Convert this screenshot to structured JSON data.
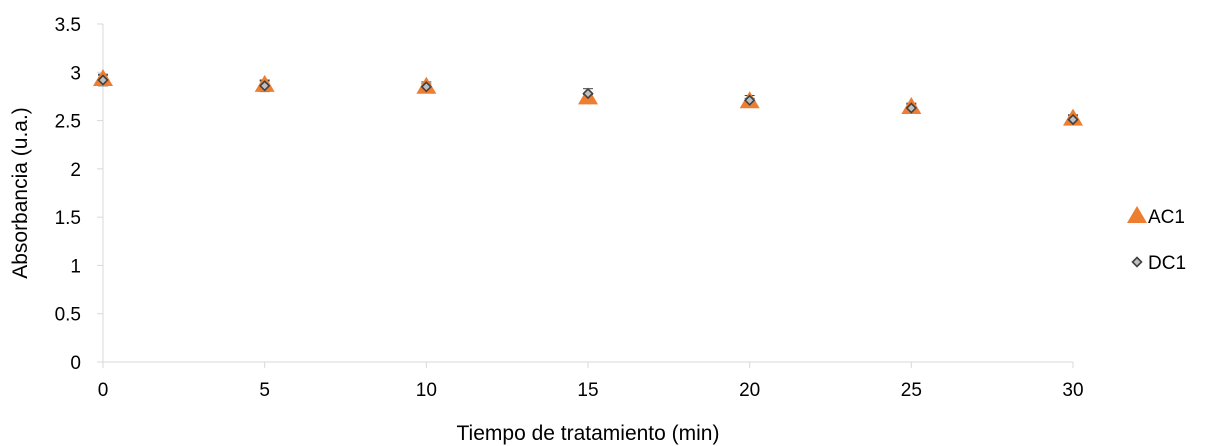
{
  "chart_data": {
    "type": "scatter",
    "title": "",
    "xlabel": "Tiempo de tratamiento (min)",
    "ylabel": "Absorbancia (u.a.)",
    "xlim": [
      0,
      30
    ],
    "ylim": [
      0,
      3.5
    ],
    "xticks": [
      "0",
      "5",
      "10",
      "15",
      "20",
      "25",
      "30"
    ],
    "yticks": [
      "0",
      "0.5",
      "1",
      "1.5",
      "2",
      "2.5",
      "3",
      "3.5"
    ],
    "grid": false,
    "legend_position": "right",
    "series": [
      {
        "name": "AC1",
        "marker": "triangle",
        "color": "#ED7D31",
        "x": [
          0,
          5,
          10,
          15,
          20,
          25,
          30
        ],
        "y": [
          2.93,
          2.87,
          2.85,
          2.74,
          2.7,
          2.64,
          2.52
        ],
        "error": [
          0.04,
          0.04,
          0.03,
          0.03,
          0.03,
          0.03,
          0.03
        ]
      },
      {
        "name": "DC1",
        "marker": "diamond",
        "color": "#7F7F7F",
        "x": [
          0,
          5,
          10,
          15,
          20,
          25,
          30
        ],
        "y": [
          2.92,
          2.86,
          2.85,
          2.78,
          2.71,
          2.63,
          2.51
        ],
        "error": [
          0.06,
          0.06,
          0.05,
          0.05,
          0.05,
          0.05,
          0.05
        ]
      }
    ]
  }
}
